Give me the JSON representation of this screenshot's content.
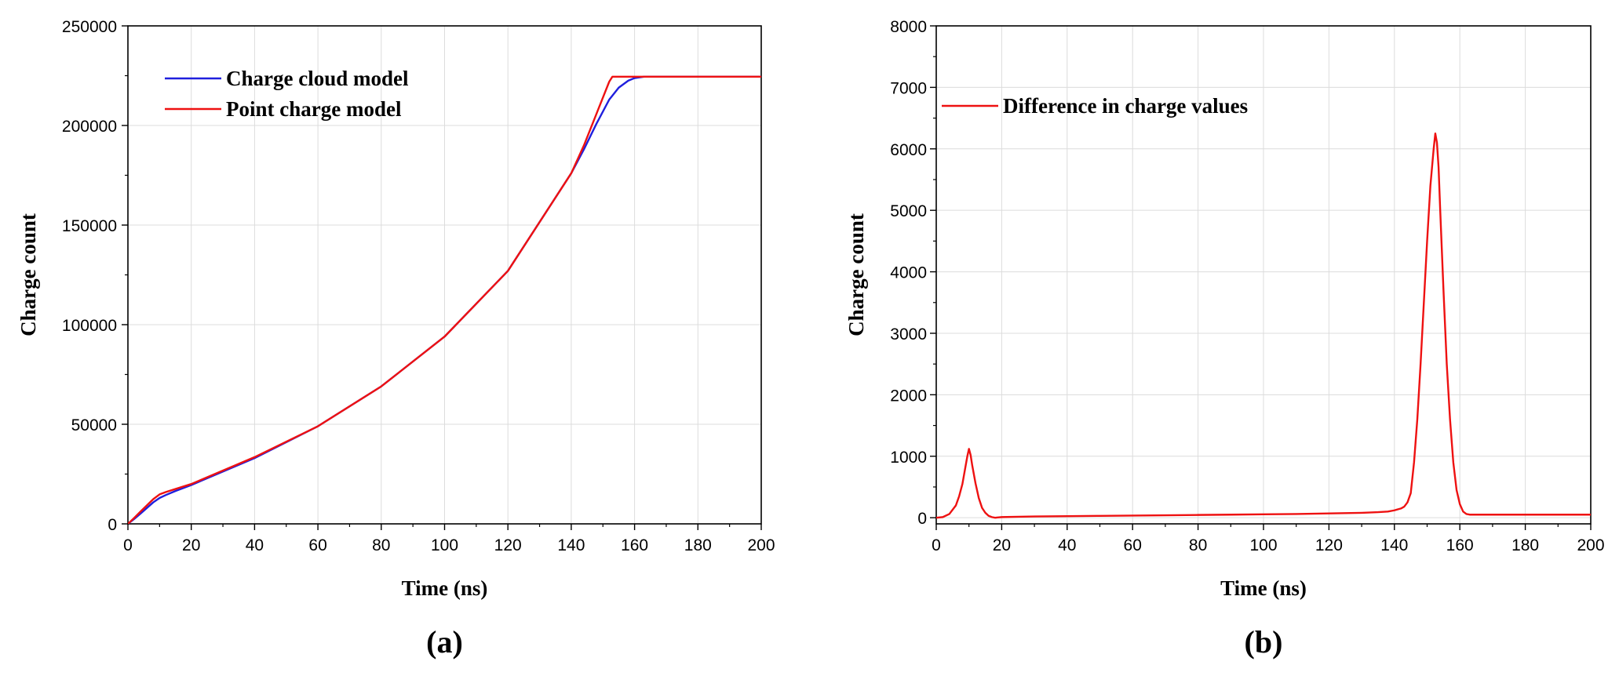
{
  "chart_data": [
    {
      "type": "line",
      "panel_label": "(a)",
      "xlabel": "Time (ns)",
      "ylabel": "Charge count",
      "xlim": [
        0,
        200
      ],
      "ylim": [
        0,
        250000
      ],
      "xticks": [
        0,
        20,
        40,
        60,
        80,
        100,
        120,
        140,
        160,
        180,
        200
      ],
      "yticks": [
        0,
        50000,
        100000,
        150000,
        200000,
        250000
      ],
      "grid": true,
      "legend_position": "top-left",
      "series": [
        {
          "name": "Charge cloud model",
          "color": "#1f1fdd",
          "x": [
            0,
            2,
            4,
            6,
            8,
            10,
            12,
            15,
            20,
            40,
            60,
            80,
            100,
            120,
            140,
            144,
            148,
            152,
            155,
            158,
            160,
            163,
            170,
            200
          ],
          "y": [
            0,
            2500,
            5200,
            8000,
            10800,
            13000,
            14500,
            16500,
            19500,
            33000,
            49000,
            69000,
            94000,
            127000,
            176000,
            188000,
            201000,
            213000,
            219000,
            222500,
            223800,
            224500,
            224500,
            224500
          ]
        },
        {
          "name": "Point charge model",
          "color": "#ee1111",
          "x": [
            0,
            2,
            4,
            6,
            8,
            10,
            12,
            15,
            20,
            40,
            60,
            80,
            100,
            120,
            140,
            144,
            148,
            152,
            153,
            160,
            170,
            200
          ],
          "y": [
            0,
            3000,
            6200,
            9300,
            12400,
            14800,
            16000,
            17500,
            20000,
            33500,
            49000,
            69000,
            94000,
            127000,
            176000,
            190000,
            206000,
            222000,
            224500,
            224500,
            224500,
            224500
          ]
        }
      ]
    },
    {
      "type": "line",
      "panel_label": "(b)",
      "xlabel": "Time (ns)",
      "ylabel": "Charge count",
      "xlim": [
        0,
        200
      ],
      "ylim": [
        -100,
        8000
      ],
      "xticks": [
        0,
        20,
        40,
        60,
        80,
        100,
        120,
        140,
        160,
        180,
        200
      ],
      "yticks": [
        0,
        1000,
        2000,
        3000,
        4000,
        5000,
        6000,
        7000,
        8000
      ],
      "grid": true,
      "legend_position": "top-left",
      "series": [
        {
          "name": "Difference in charge values",
          "color": "#ee1111",
          "x": [
            0,
            2,
            4,
            6,
            7,
            8,
            9,
            9.5,
            10,
            10.5,
            11,
            12,
            13,
            14,
            15,
            16,
            17,
            18,
            20,
            25,
            30,
            40,
            50,
            60,
            70,
            80,
            90,
            100,
            110,
            120,
            130,
            135,
            138,
            140,
            142,
            143,
            144,
            145,
            146,
            147,
            148,
            149,
            150,
            151,
            152,
            152.5,
            153,
            153.5,
            154,
            155,
            156,
            157,
            158,
            159,
            160,
            161,
            162,
            163,
            165,
            170,
            180,
            200
          ],
          "y": [
            0,
            10,
            60,
            200,
            350,
            550,
            850,
            1000,
            1120,
            1020,
            850,
            560,
            320,
            160,
            80,
            30,
            10,
            0,
            10,
            15,
            20,
            25,
            30,
            35,
            40,
            45,
            50,
            55,
            60,
            70,
            80,
            90,
            100,
            120,
            150,
            180,
            250,
            400,
            900,
            1600,
            2500,
            3500,
            4500,
            5400,
            6000,
            6250,
            6100,
            5700,
            5000,
            3700,
            2500,
            1600,
            900,
            450,
            220,
            100,
            60,
            50,
            50,
            50,
            50,
            50
          ]
        }
      ]
    }
  ]
}
